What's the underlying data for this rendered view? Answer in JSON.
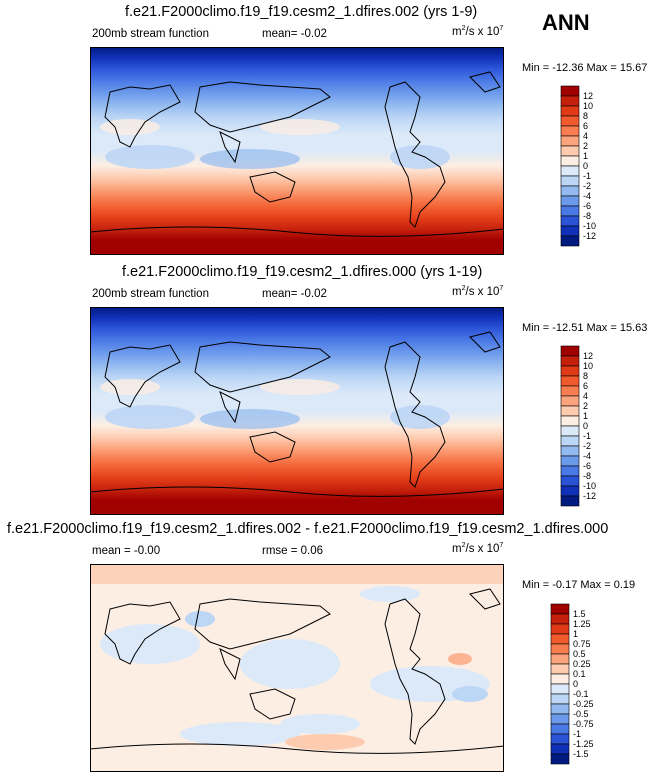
{
  "season": "ANN",
  "panels": [
    {
      "title": "f.e21.F2000climo.f19_f19.cesm2_1.dfires.002 (yrs 1-9)",
      "variable": "200mb stream function",
      "stat1": "mean=  -0.02",
      "units_base": "m",
      "units_sup": "2",
      "units_mid": "/s x 10",
      "units_exp": "7",
      "minmax": "Min = -12.36 Max =  15.67"
    },
    {
      "title": "f.e21.F2000climo.f19_f19.cesm2_1.dfires.000 (yrs 1-19)",
      "variable": "200mb stream function",
      "stat1": "mean=  -0.02",
      "units_base": "m",
      "units_sup": "2",
      "units_mid": "/s x 10",
      "units_exp": "7",
      "minmax": "Min = -12.51 Max =  15.63"
    },
    {
      "title": "f.e21.F2000climo.f19_f19.cesm2_1.dfires.002 - f.e21.F2000climo.f19_f19.cesm2_1.dfires.000",
      "variable": "mean =  -0.00",
      "stat1": "rmse =  0.06",
      "units_base": "m",
      "units_sup": "2",
      "units_mid": "/s x 10",
      "units_exp": "7",
      "minmax": "Min = -0.17 Max =  0.19"
    }
  ],
  "chart_data": [
    {
      "type": "heatmap",
      "title": "f.e21.F2000climo.f19_f19.cesm2_1.dfires.002 (yrs 1-9)",
      "variable": "200mb stream function",
      "units": "m2/s x 10^7",
      "min": -12.36,
      "max": 15.67,
      "mean": -0.02,
      "colorbar_levels": [
        "12",
        "10",
        "8",
        "6",
        "4",
        "2",
        "1",
        "0",
        "-1",
        "-2",
        "-4",
        "-6",
        "-8",
        "-10",
        "-12"
      ],
      "colorbar_colors": [
        "#a00000",
        "#c4200c",
        "#e03a17",
        "#f05a2d",
        "#f87d50",
        "#fba47d",
        "#fdcbb0",
        "#fdeee3",
        "#dbe9f9",
        "#bcd6f5",
        "#93baf0",
        "#6c9aeb",
        "#4a79e6",
        "#2a53d6",
        "#1030b8",
        "#001a80"
      ]
    },
    {
      "type": "heatmap",
      "title": "f.e21.F2000climo.f19_f19.cesm2_1.dfires.000 (yrs 1-19)",
      "variable": "200mb stream function",
      "units": "m2/s x 10^7",
      "min": -12.51,
      "max": 15.63,
      "mean": -0.02,
      "colorbar_levels": [
        "12",
        "10",
        "8",
        "6",
        "4",
        "2",
        "1",
        "0",
        "-1",
        "-2",
        "-4",
        "-6",
        "-8",
        "-10",
        "-12"
      ],
      "colorbar_colors": [
        "#a00000",
        "#c4200c",
        "#e03a17",
        "#f05a2d",
        "#f87d50",
        "#fba47d",
        "#fdcbb0",
        "#fdeee3",
        "#dbe9f9",
        "#bcd6f5",
        "#93baf0",
        "#6c9aeb",
        "#4a79e6",
        "#2a53d6",
        "#1030b8",
        "#001a80"
      ]
    },
    {
      "type": "heatmap",
      "title": "f.e21.F2000climo.f19_f19.cesm2_1.dfires.002 - f.e21.F2000climo.f19_f19.cesm2_1.dfires.000",
      "units": "m2/s x 10^7",
      "min": -0.17,
      "max": 0.19,
      "mean": -0.0,
      "rmse": 0.06,
      "colorbar_levels": [
        "1.5",
        "1.25",
        "1",
        "0.75",
        "0.5",
        "0.25",
        "0.1",
        "0",
        "-0.1",
        "-0.25",
        "-0.5",
        "-0.75",
        "-1",
        "-1.25",
        "-1.5"
      ],
      "colorbar_colors": [
        "#a00000",
        "#c4200c",
        "#e03a17",
        "#f05a2d",
        "#f87d50",
        "#fba47d",
        "#fdcbb0",
        "#fdeee3",
        "#dbe9f9",
        "#bcd6f5",
        "#93baf0",
        "#6c9aeb",
        "#4a79e6",
        "#2a53d6",
        "#1030b8",
        "#001a80"
      ]
    }
  ]
}
